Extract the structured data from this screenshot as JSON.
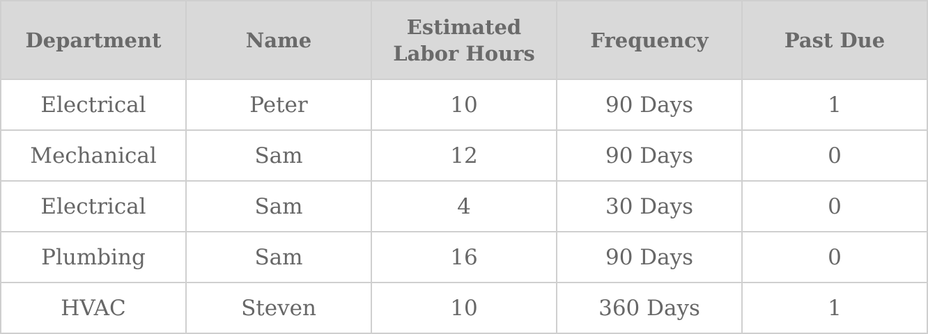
{
  "table": {
    "columns": [
      "Department",
      "Name",
      "Estimated Labor Hours",
      "Frequency",
      "Past Due"
    ],
    "rows": [
      [
        "Electrical",
        "Peter",
        "10",
        "90 Days",
        "1"
      ],
      [
        "Mechanical",
        "Sam",
        "12",
        "90 Days",
        "0"
      ],
      [
        "Electrical",
        "Sam",
        "4",
        "30 Days",
        "0"
      ],
      [
        "Plumbing",
        "Sam",
        "16",
        "90 Days",
        "0"
      ],
      [
        "HVAC",
        "Steven",
        "10",
        "360 Days",
        "1"
      ]
    ]
  }
}
